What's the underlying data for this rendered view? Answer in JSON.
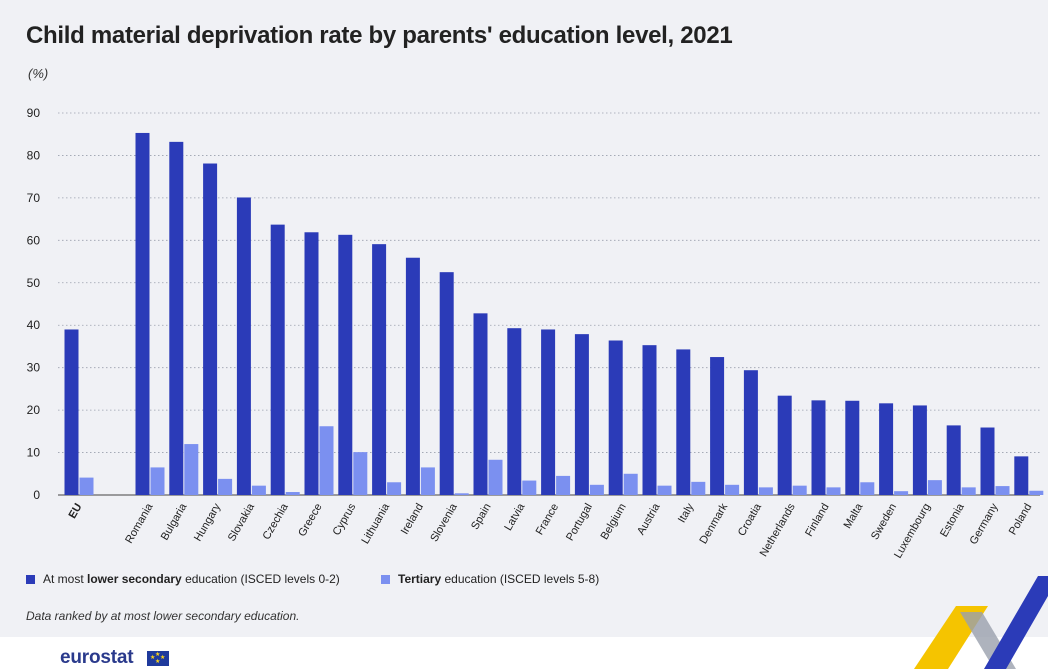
{
  "header": {
    "title": "Child material deprivation rate by parents' education level, 2021",
    "unit": "(%)"
  },
  "legend": {
    "series1_pre": "At most ",
    "series1_bold": "lower secondary",
    "series1_post": " education (ISCED levels 0-2)",
    "series2_bold": "Tertiary",
    "series2_post": " education (ISCED levels 5-8)"
  },
  "note": "Data ranked by at most lower secondary education.",
  "brand": {
    "logo_text": "eurostat"
  },
  "colors": {
    "series1": "#2b3bb8",
    "series2": "#7b90f0",
    "panel": "#f0f1f5",
    "grid": "#9aa0ad",
    "deco_yellow": "#f5c400",
    "deco_blue": "#2b3bb8",
    "deco_grey": "#9aa0ad"
  },
  "chart_data": {
    "type": "bar",
    "title": "Child material deprivation rate by parents' education level, 2021",
    "ylabel": "(%)",
    "ylim": [
      0,
      90
    ],
    "yticks": [
      0,
      10,
      20,
      30,
      40,
      50,
      60,
      70,
      80,
      90
    ],
    "grid": true,
    "legend_position": "bottom",
    "categories": [
      "EU",
      "Romania",
      "Bulgaria",
      "Hungary",
      "Slovakia",
      "Czechia",
      "Greece",
      "Cyprus",
      "Lithuania",
      "Ireland",
      "Slovenia",
      "Spain",
      "Latvia",
      "France",
      "Portugal",
      "Belgium",
      "Austria",
      "Italy",
      "Denmark",
      "Croatia",
      "Netherlands",
      "Finland",
      "Malta",
      "Sweden",
      "Luxembourg",
      "Estonia",
      "Germany",
      "Poland"
    ],
    "series": [
      {
        "name": "At most lower secondary education (ISCED levels 0-2)",
        "values": [
          39.0,
          85.3,
          83.2,
          78.1,
          70.1,
          63.7,
          61.9,
          61.3,
          59.1,
          55.9,
          52.5,
          42.8,
          39.3,
          39.0,
          37.9,
          36.4,
          35.3,
          34.3,
          32.5,
          29.4,
          23.4,
          22.3,
          22.2,
          21.6,
          21.1,
          16.4,
          15.9,
          9.1
        ]
      },
      {
        "name": "Tertiary education (ISCED levels 5-8)",
        "values": [
          4.1,
          6.5,
          12.0,
          3.8,
          2.2,
          0.7,
          16.2,
          10.1,
          3.0,
          6.5,
          0.4,
          8.3,
          3.4,
          4.5,
          2.4,
          5.0,
          2.2,
          3.1,
          2.4,
          1.8,
          2.2,
          1.8,
          3.0,
          0.9,
          3.5,
          1.8,
          2.1,
          1.0
        ]
      }
    ]
  }
}
